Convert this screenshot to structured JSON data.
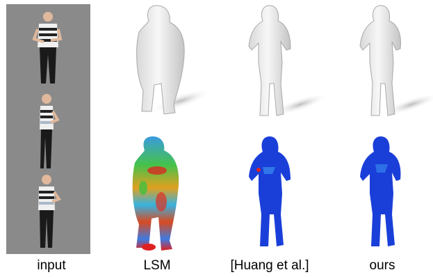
{
  "figure": {
    "captions": {
      "input": "input",
      "lsm": "LSM",
      "huang": "[Huang et al.]",
      "ours": "ours"
    },
    "colors": {
      "input_background": "#8a8a8a",
      "mesh_light": "#f2f2f2",
      "mesh_shadow": "#b5b5b5",
      "error_low": "#1a3fd9",
      "error_mid": "#2fbf3a",
      "error_high": "#e02020"
    }
  }
}
